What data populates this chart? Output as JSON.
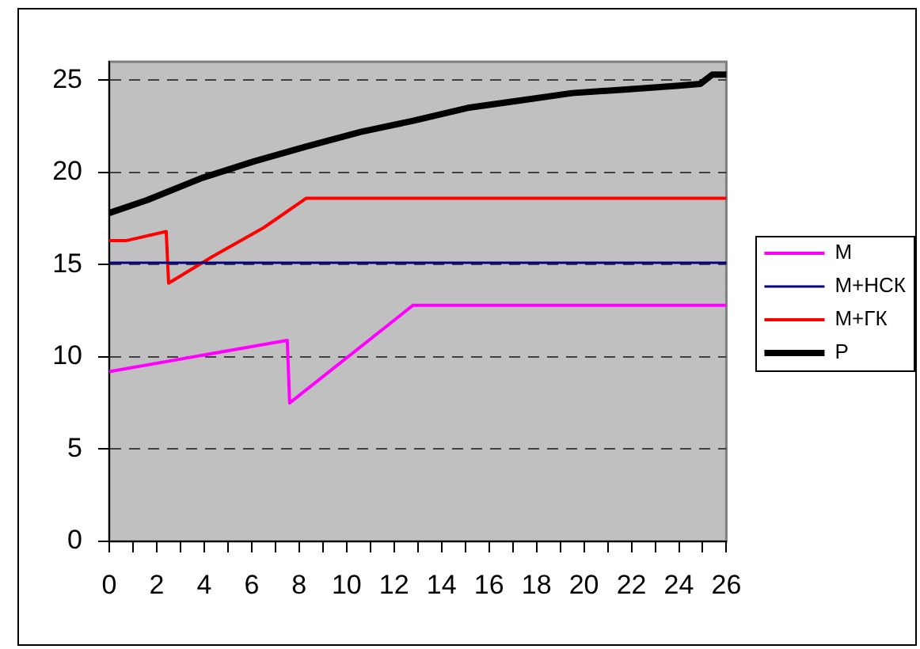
{
  "chart_data": {
    "type": "line",
    "series": [
      {
        "name": "М",
        "color": "#ff00ff",
        "x": [
          0,
          7.5,
          7.6,
          12.8,
          26
        ],
        "values": [
          9.2,
          10.9,
          7.5,
          12.8,
          12.8
        ]
      },
      {
        "name": "М+НСК",
        "color": "#000080",
        "x": [
          0,
          26
        ],
        "values": [
          15.1,
          15.1
        ]
      },
      {
        "name": "М+ГК",
        "color": "#ff0000",
        "x": [
          0,
          0.7,
          2.4,
          2.5,
          4.3,
          6.5,
          8.3,
          26
        ],
        "values": [
          16.3,
          16.3,
          16.8,
          14.0,
          15.4,
          17.0,
          18.6,
          18.6
        ]
      },
      {
        "name": "Р",
        "color": "#000000",
        "x": [
          0,
          1.6,
          3.9,
          6.1,
          8.3,
          10.6,
          12.8,
          15.1,
          17.3,
          19.5,
          21.8,
          24,
          24.9,
          25.4,
          26
        ],
        "values": [
          17.8,
          18.5,
          19.7,
          20.6,
          21.4,
          22.2,
          22.8,
          23.5,
          23.9,
          24.3,
          24.5,
          24.7,
          24.8,
          25.3,
          25.3
        ]
      }
    ],
    "xlim": [
      0,
      26
    ],
    "xticks": [
      0,
      {
        "value": 1,
        "label": null
      },
      2,
      {
        "value": 3,
        "label": null
      },
      4,
      {
        "value": 5,
        "label": null
      },
      6,
      {
        "value": 7,
        "label": null
      },
      8,
      {
        "value": 9,
        "label": null
      },
      10,
      {
        "value": 11,
        "label": null
      },
      12,
      {
        "value": 13,
        "label": null
      },
      14,
      {
        "value": 15,
        "label": null
      },
      16,
      {
        "value": 17,
        "label": null
      },
      18,
      {
        "value": 19,
        "label": null
      },
      20,
      {
        "value": 21,
        "label": null
      },
      22,
      {
        "value": 23,
        "label": null
      },
      24,
      {
        "value": 25,
        "label": null
      },
      26
    ],
    "ylim": [
      0,
      26
    ],
    "yticks": [
      0,
      5,
      10,
      15,
      20,
      25
    ],
    "grid": "y",
    "legend": "right",
    "marker": "none",
    "line_style": "solid"
  }
}
